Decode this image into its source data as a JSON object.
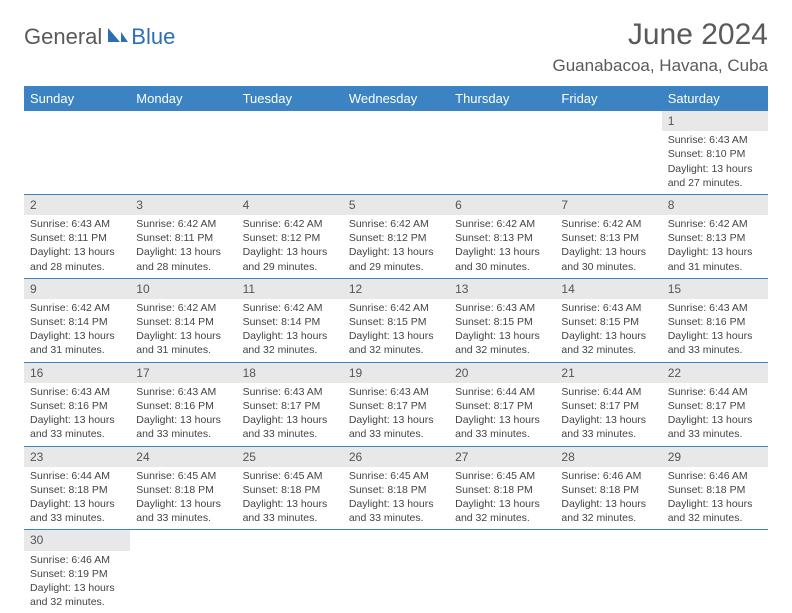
{
  "logo": {
    "part1": "General",
    "part2": "Blue"
  },
  "title": "June 2024",
  "location": "Guanabacoa, Havana, Cuba",
  "colors": {
    "header_bg": "#3b83c2",
    "header_text": "#ffffff",
    "daynum_bg": "#e8e8e8",
    "border": "#3b83c2",
    "logo_gray": "#5a5a5a",
    "logo_blue": "#2c6fb3"
  },
  "weekdays": [
    "Sunday",
    "Monday",
    "Tuesday",
    "Wednesday",
    "Thursday",
    "Friday",
    "Saturday"
  ],
  "weeks": [
    [
      null,
      null,
      null,
      null,
      null,
      null,
      {
        "n": "1",
        "sr": "6:43 AM",
        "ss": "8:10 PM",
        "dl": "13 hours and 27 minutes."
      }
    ],
    [
      {
        "n": "2",
        "sr": "6:43 AM",
        "ss": "8:11 PM",
        "dl": "13 hours and 28 minutes."
      },
      {
        "n": "3",
        "sr": "6:42 AM",
        "ss": "8:11 PM",
        "dl": "13 hours and 28 minutes."
      },
      {
        "n": "4",
        "sr": "6:42 AM",
        "ss": "8:12 PM",
        "dl": "13 hours and 29 minutes."
      },
      {
        "n": "5",
        "sr": "6:42 AM",
        "ss": "8:12 PM",
        "dl": "13 hours and 29 minutes."
      },
      {
        "n": "6",
        "sr": "6:42 AM",
        "ss": "8:13 PM",
        "dl": "13 hours and 30 minutes."
      },
      {
        "n": "7",
        "sr": "6:42 AM",
        "ss": "8:13 PM",
        "dl": "13 hours and 30 minutes."
      },
      {
        "n": "8",
        "sr": "6:42 AM",
        "ss": "8:13 PM",
        "dl": "13 hours and 31 minutes."
      }
    ],
    [
      {
        "n": "9",
        "sr": "6:42 AM",
        "ss": "8:14 PM",
        "dl": "13 hours and 31 minutes."
      },
      {
        "n": "10",
        "sr": "6:42 AM",
        "ss": "8:14 PM",
        "dl": "13 hours and 31 minutes."
      },
      {
        "n": "11",
        "sr": "6:42 AM",
        "ss": "8:14 PM",
        "dl": "13 hours and 32 minutes."
      },
      {
        "n": "12",
        "sr": "6:42 AM",
        "ss": "8:15 PM",
        "dl": "13 hours and 32 minutes."
      },
      {
        "n": "13",
        "sr": "6:43 AM",
        "ss": "8:15 PM",
        "dl": "13 hours and 32 minutes."
      },
      {
        "n": "14",
        "sr": "6:43 AM",
        "ss": "8:15 PM",
        "dl": "13 hours and 32 minutes."
      },
      {
        "n": "15",
        "sr": "6:43 AM",
        "ss": "8:16 PM",
        "dl": "13 hours and 33 minutes."
      }
    ],
    [
      {
        "n": "16",
        "sr": "6:43 AM",
        "ss": "8:16 PM",
        "dl": "13 hours and 33 minutes."
      },
      {
        "n": "17",
        "sr": "6:43 AM",
        "ss": "8:16 PM",
        "dl": "13 hours and 33 minutes."
      },
      {
        "n": "18",
        "sr": "6:43 AM",
        "ss": "8:17 PM",
        "dl": "13 hours and 33 minutes."
      },
      {
        "n": "19",
        "sr": "6:43 AM",
        "ss": "8:17 PM",
        "dl": "13 hours and 33 minutes."
      },
      {
        "n": "20",
        "sr": "6:44 AM",
        "ss": "8:17 PM",
        "dl": "13 hours and 33 minutes."
      },
      {
        "n": "21",
        "sr": "6:44 AM",
        "ss": "8:17 PM",
        "dl": "13 hours and 33 minutes."
      },
      {
        "n": "22",
        "sr": "6:44 AM",
        "ss": "8:17 PM",
        "dl": "13 hours and 33 minutes."
      }
    ],
    [
      {
        "n": "23",
        "sr": "6:44 AM",
        "ss": "8:18 PM",
        "dl": "13 hours and 33 minutes."
      },
      {
        "n": "24",
        "sr": "6:45 AM",
        "ss": "8:18 PM",
        "dl": "13 hours and 33 minutes."
      },
      {
        "n": "25",
        "sr": "6:45 AM",
        "ss": "8:18 PM",
        "dl": "13 hours and 33 minutes."
      },
      {
        "n": "26",
        "sr": "6:45 AM",
        "ss": "8:18 PM",
        "dl": "13 hours and 33 minutes."
      },
      {
        "n": "27",
        "sr": "6:45 AM",
        "ss": "8:18 PM",
        "dl": "13 hours and 32 minutes."
      },
      {
        "n": "28",
        "sr": "6:46 AM",
        "ss": "8:18 PM",
        "dl": "13 hours and 32 minutes."
      },
      {
        "n": "29",
        "sr": "6:46 AM",
        "ss": "8:18 PM",
        "dl": "13 hours and 32 minutes."
      }
    ],
    [
      {
        "n": "30",
        "sr": "6:46 AM",
        "ss": "8:19 PM",
        "dl": "13 hours and 32 minutes."
      },
      null,
      null,
      null,
      null,
      null,
      null
    ]
  ],
  "labels": {
    "sunrise": "Sunrise:",
    "sunset": "Sunset:",
    "daylight": "Daylight:"
  }
}
